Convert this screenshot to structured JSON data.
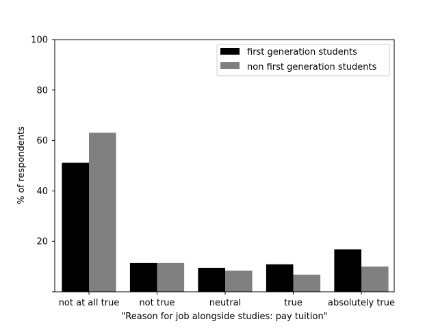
{
  "chart_data": {
    "type": "bar",
    "title": "",
    "xlabel": "\"Reason for job alongside studies: pay tuition\"",
    "ylabel": "% of respondents",
    "ylim": [
      0,
      100
    ],
    "yticks": [
      20,
      40,
      60,
      80,
      100
    ],
    "grid": false,
    "legend_position": "top-right",
    "categories": [
      "not at all true",
      "not true",
      "neutral",
      "true",
      "absolutely true"
    ],
    "series": [
      {
        "name": "first generation students",
        "color": "#000000",
        "values": [
          51.2,
          11.4,
          9.5,
          10.9,
          16.8
        ]
      },
      {
        "name": "non first generation students",
        "color": "#808080",
        "values": [
          63.1,
          11.4,
          8.4,
          6.8,
          10.0
        ]
      }
    ]
  }
}
